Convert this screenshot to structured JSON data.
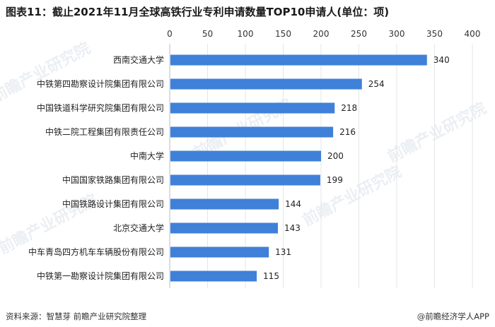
{
  "title": "图表11：截止2021年11月全球高铁行业专利申请数量TOP10申请人(单位：项)",
  "watermark_text": "前瞻产业研究院",
  "footer": {
    "source": "资料来源：智慧芽 前瞻产业研究院整理",
    "brand": "@前瞻经济学人APP"
  },
  "colors": {
    "bar": "#3f80d9",
    "grid": "#e6e6e6",
    "axis": "#bbbbbb"
  },
  "chart_data": {
    "type": "bar",
    "orientation": "horizontal",
    "categories": [
      "西南交通大学",
      "中铁第四勘察设计院集团有限公司",
      "中国铁道科学研究院集团有限公司",
      "中铁二院工程集团有限责任公司",
      "中南大学",
      "中国国家铁路集团有限公司",
      "中国铁路设计集团有限公司",
      "北京交通大学",
      "中车青岛四方机车车辆股份有限公司",
      "中铁第一勘察设计院集团有限公司"
    ],
    "values": [
      340,
      254,
      218,
      216,
      200,
      199,
      144,
      143,
      131,
      115
    ],
    "xlim": [
      0,
      400
    ],
    "xticks": [
      0,
      50,
      100,
      150,
      200,
      250,
      300,
      350,
      400
    ],
    "grid": true,
    "data_labels": true
  }
}
